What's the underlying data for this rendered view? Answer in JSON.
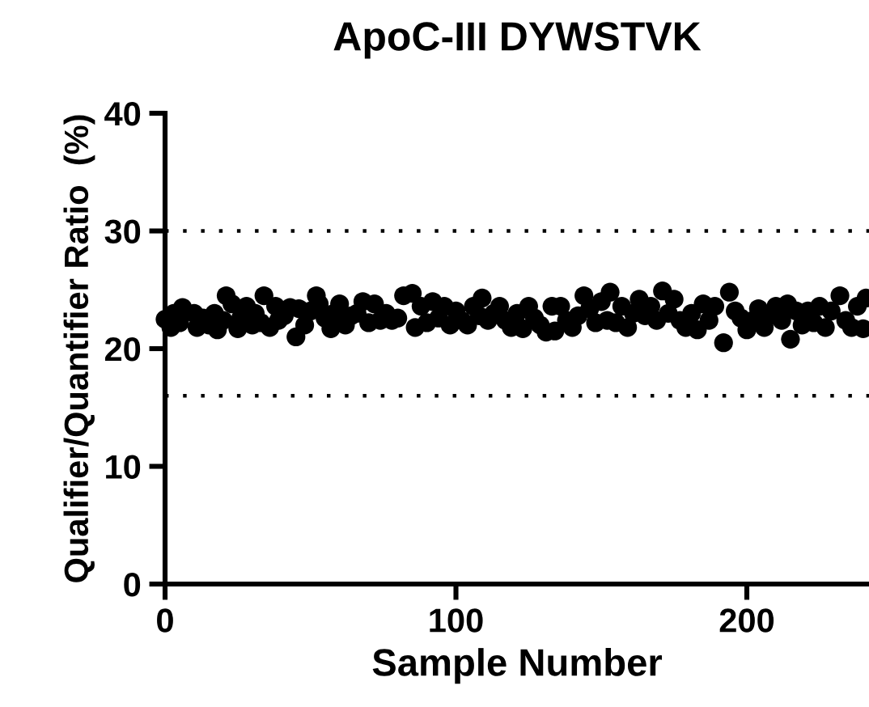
{
  "chart_data": {
    "type": "scatter",
    "title": "ApoC-III DYWSTVK",
    "xlabel": "Sample Number",
    "ylabel": "Qualifier/Quantifier Ratio  (%)",
    "x": [
      0,
      2,
      3,
      5,
      6,
      10,
      11,
      13,
      15,
      17,
      18,
      20,
      21,
      23,
      25,
      26,
      28,
      30,
      31,
      33,
      34,
      36,
      38,
      39,
      41,
      43,
      45,
      46,
      48,
      50,
      52,
      53,
      55,
      57,
      58,
      60,
      62,
      64,
      66,
      68,
      70,
      72,
      74,
      76,
      78,
      80,
      82,
      85,
      86,
      88,
      90,
      92,
      94,
      96,
      98,
      100,
      102,
      104,
      106,
      108,
      109,
      111,
      113,
      115,
      117,
      119,
      121,
      123,
      125,
      127,
      129,
      131,
      133,
      134,
      136,
      138,
      140,
      142,
      144,
      146,
      148,
      150,
      152,
      153,
      155,
      157,
      159,
      161,
      163,
      165,
      167,
      169,
      171,
      173,
      175,
      177,
      179,
      181,
      183,
      185,
      187,
      189,
      192,
      194,
      196,
      198,
      200,
      202,
      204,
      206,
      208,
      210,
      212,
      214,
      215,
      217,
      219,
      221,
      223,
      225,
      227,
      229,
      232,
      234,
      236,
      238,
      240,
      241
    ],
    "values": [
      22.5,
      21.8,
      23.0,
      22.2,
      23.5,
      23.0,
      21.8,
      22.6,
      22.0,
      23.0,
      21.6,
      22.4,
      24.5,
      23.8,
      21.7,
      22.6,
      23.6,
      22.0,
      23.0,
      22.2,
      24.5,
      21.8,
      23.6,
      22.4,
      22.8,
      23.5,
      21.0,
      23.4,
      22.0,
      23.2,
      24.5,
      23.8,
      22.6,
      21.7,
      23.0,
      23.8,
      22.0,
      22.8,
      23.0,
      24.0,
      22.2,
      23.8,
      22.4,
      23.0,
      22.4,
      22.6,
      24.5,
      24.7,
      21.8,
      23.6,
      22.2,
      24.0,
      22.6,
      23.6,
      22.0,
      23.2,
      22.4,
      22.0,
      23.6,
      22.8,
      24.3,
      22.4,
      23.0,
      23.6,
      22.4,
      21.8,
      23.0,
      21.7,
      23.6,
      22.6,
      22.0,
      21.4,
      23.6,
      21.5,
      23.6,
      22.4,
      21.8,
      22.8,
      24.5,
      23.4,
      22.2,
      24.0,
      22.4,
      24.8,
      22.2,
      23.6,
      21.8,
      23.0,
      24.2,
      22.8,
      23.6,
      22.4,
      24.9,
      23.0,
      24.2,
      22.4,
      21.8,
      23.0,
      21.6,
      23.8,
      22.4,
      23.6,
      20.5,
      24.8,
      23.2,
      22.6,
      21.6,
      22.4,
      23.4,
      21.8,
      22.8,
      23.6,
      22.4,
      23.8,
      20.8,
      23.2,
      22.0,
      23.2,
      22.2,
      23.6,
      21.8,
      23.2,
      24.5,
      22.4,
      21.8,
      23.6,
      21.7,
      24.3
    ],
    "color": "#000000",
    "marker": "circle",
    "xlim": [
      0,
      242
    ],
    "xticks": [
      0,
      100,
      200
    ],
    "ylim": [
      0,
      40
    ],
    "yticks": [
      0,
      10,
      20,
      30,
      40
    ],
    "grid": false,
    "legend": false,
    "ref_lines": [
      {
        "axis": "y",
        "value": 30,
        "line_style": "dotted",
        "color": "#000000"
      },
      {
        "axis": "y",
        "value": 16,
        "line_style": "dotted",
        "color": "#000000"
      }
    ]
  }
}
